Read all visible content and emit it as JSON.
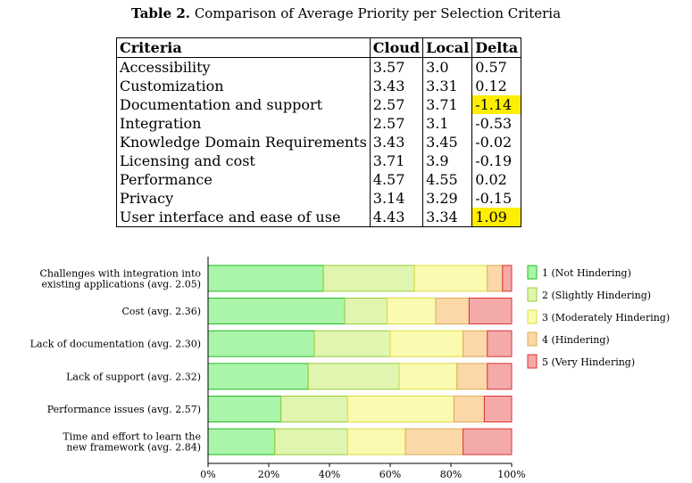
{
  "table": {
    "caption_bold": "Table 2.",
    "caption_text": "Comparison of Average Priority per Selection Criteria",
    "headers": [
      "Criteria",
      "Cloud",
      "Local",
      "Delta"
    ],
    "rows": [
      {
        "criteria": "Accessibility",
        "cloud": "3.57",
        "local": "3.0",
        "delta": "0.57",
        "highlight": false
      },
      {
        "criteria": "Customization",
        "cloud": "3.43",
        "local": "3.31",
        "delta": "0.12",
        "highlight": false
      },
      {
        "criteria": "Documentation and support",
        "cloud": "2.57",
        "local": "3.71",
        "delta": "-1.14",
        "highlight": true
      },
      {
        "criteria": "Integration",
        "cloud": "2.57",
        "local": "3.1",
        "delta": "-0.53",
        "highlight": false
      },
      {
        "criteria": "Knowledge Domain Requirements",
        "cloud": "3.43",
        "local": "3.45",
        "delta": "-0.02",
        "highlight": false
      },
      {
        "criteria": "Licensing and cost",
        "cloud": "3.71",
        "local": "3.9",
        "delta": "-0.19",
        "highlight": false
      },
      {
        "criteria": "Performance",
        "cloud": "4.57",
        "local": "4.55",
        "delta": "0.02",
        "highlight": false
      },
      {
        "criteria": "Privacy",
        "cloud": "3.14",
        "local": "3.29",
        "delta": "-0.15",
        "highlight": false
      },
      {
        "criteria": "User interface and ease of use",
        "cloud": "4.43",
        "local": "3.34",
        "delta": "1.09",
        "highlight": true
      }
    ],
    "highlight_color": "#ffee00"
  },
  "chart_data": {
    "type": "bar",
    "orientation": "horizontal",
    "stacked": true,
    "percent": true,
    "categories": [
      [
        "Challenges with integration into",
        "existing applications (avg. 2.05)"
      ],
      [
        "Cost (avg. 2.36)"
      ],
      [
        "Lack of documentation (avg. 2.30)"
      ],
      [
        "Lack of support (avg. 2.32)"
      ],
      [
        "Performance issues (avg. 2.57)"
      ],
      [
        "Time and effort to learn the",
        "new framework (avg. 2.84)"
      ]
    ],
    "series": [
      {
        "name": "1 (Not Hindering)",
        "fill": "#aaf5aa",
        "stroke": "#22bb22",
        "values": [
          38,
          45,
          35,
          33,
          24,
          22
        ]
      },
      {
        "name": "2 (Slightly Hindering)",
        "fill": "#e0f5b0",
        "stroke": "#99cc33",
        "values": [
          30,
          14,
          25,
          30,
          22,
          24
        ]
      },
      {
        "name": "3 (Moderately Hindering)",
        "fill": "#fafab0",
        "stroke": "#dddd44",
        "values": [
          24,
          16,
          24,
          19,
          35,
          19
        ]
      },
      {
        "name": "4 (Hindering)",
        "fill": "#fad8a8",
        "stroke": "#ddaa55",
        "values": [
          5,
          11,
          8,
          10,
          10,
          19
        ]
      },
      {
        "name": "5 (Very Hindering)",
        "fill": "#f5aaaa",
        "stroke": "#dd3333",
        "values": [
          3,
          14,
          8,
          8,
          9,
          16
        ]
      }
    ],
    "xticks": [
      "0%",
      "20%",
      "40%",
      "60%",
      "80%",
      "100%"
    ],
    "xlim": [
      0,
      100
    ],
    "legend_position": "right"
  }
}
